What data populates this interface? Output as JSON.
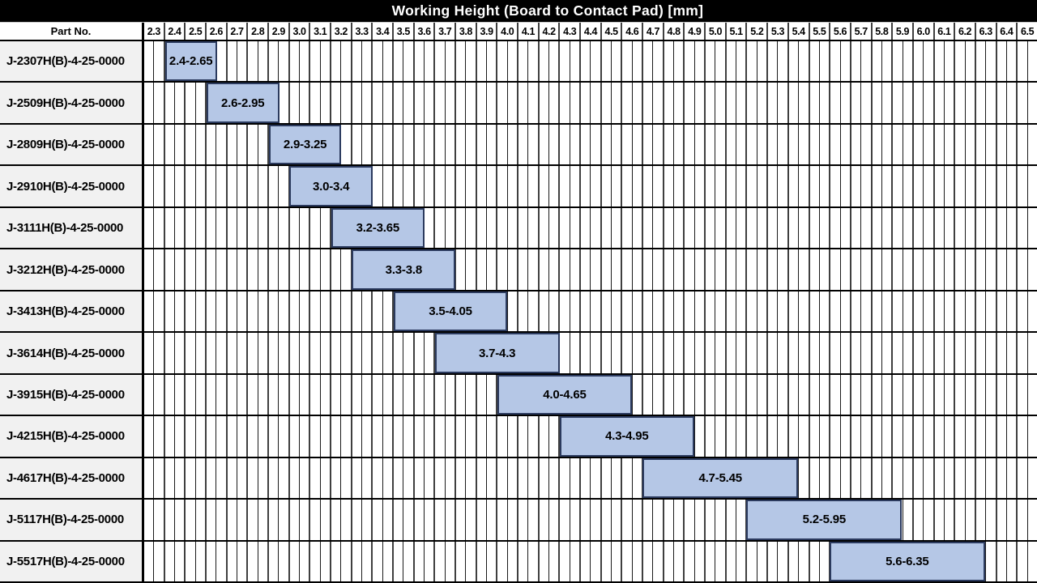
{
  "title_bar": {
    "title": "Working Height (Board to Contact Pad) [mm]"
  },
  "table": {
    "part_header": "Part No."
  },
  "colors": {
    "title_bg": "#000000",
    "title_text": "#ffffff",
    "bar_fill": "#b5c7e6",
    "bar_border": "#2b3a5e",
    "part_cell_bg": "#f1f1f1",
    "grid_major_line": "#3f3f3f",
    "grid_minor_line": "#1a1a1a",
    "row_separator": "#000000"
  },
  "chart_data": {
    "type": "bar",
    "subtype": "horizontal-range-gantt",
    "title": "Working Height (Board to Contact Pad) [mm]",
    "legend": "none",
    "grid": "on",
    "x_axis": {
      "min": 2.3,
      "max": 6.6,
      "major_step": 0.1,
      "minor_step": 0.05,
      "tick_labels": [
        "2.3",
        "2.4",
        "2.5",
        "2.6",
        "2.7",
        "2.8",
        "2.9",
        "3.0",
        "3.1",
        "3.2",
        "3.3",
        "3.4",
        "3.5",
        "3.6",
        "3.7",
        "3.8",
        "3.9",
        "4.0",
        "4.1",
        "4.2",
        "4.3",
        "4.4",
        "4.5",
        "4.6",
        "4.7",
        "4.8",
        "4.9",
        "5.0",
        "5.1",
        "5.2",
        "5.3",
        "5.4",
        "5.5",
        "5.6",
        "5.7",
        "5.8",
        "5.9",
        "6.0",
        "6.1",
        "6.2",
        "6.3",
        "6.4",
        "6.5"
      ]
    },
    "rows": [
      {
        "part_no": "J-2307H(B)-4-25-0000",
        "start": 2.4,
        "end": 2.65,
        "label": "2.4-2.65"
      },
      {
        "part_no": "J-2509H(B)-4-25-0000",
        "start": 2.6,
        "end": 2.95,
        "label": "2.6-2.95"
      },
      {
        "part_no": "J-2809H(B)-4-25-0000",
        "start": 2.9,
        "end": 3.25,
        "label": "2.9-3.25"
      },
      {
        "part_no": "J-2910H(B)-4-25-0000",
        "start": 3.0,
        "end": 3.4,
        "label": "3.0-3.4"
      },
      {
        "part_no": "J-3111H(B)-4-25-0000",
        "start": 3.2,
        "end": 3.65,
        "label": "3.2-3.65"
      },
      {
        "part_no": "J-3212H(B)-4-25-0000",
        "start": 3.3,
        "end": 3.8,
        "label": "3.3-3.8"
      },
      {
        "part_no": "J-3413H(B)-4-25-0000",
        "start": 3.5,
        "end": 4.05,
        "label": "3.5-4.05"
      },
      {
        "part_no": "J-3614H(B)-4-25-0000",
        "start": 3.7,
        "end": 4.3,
        "label": "3.7-4.3"
      },
      {
        "part_no": "J-3915H(B)-4-25-0000",
        "start": 4.0,
        "end": 4.65,
        "label": "4.0-4.65"
      },
      {
        "part_no": "J-4215H(B)-4-25-0000",
        "start": 4.3,
        "end": 4.95,
        "label": "4.3-4.95"
      },
      {
        "part_no": "J-4617H(B)-4-25-0000",
        "start": 4.7,
        "end": 5.45,
        "label": "4.7-5.45"
      },
      {
        "part_no": "J-5117H(B)-4-25-0000",
        "start": 5.2,
        "end": 5.95,
        "label": "5.2-5.95"
      },
      {
        "part_no": "J-5517H(B)-4-25-0000",
        "start": 5.6,
        "end": 6.35,
        "label": "5.6-6.35"
      }
    ]
  }
}
